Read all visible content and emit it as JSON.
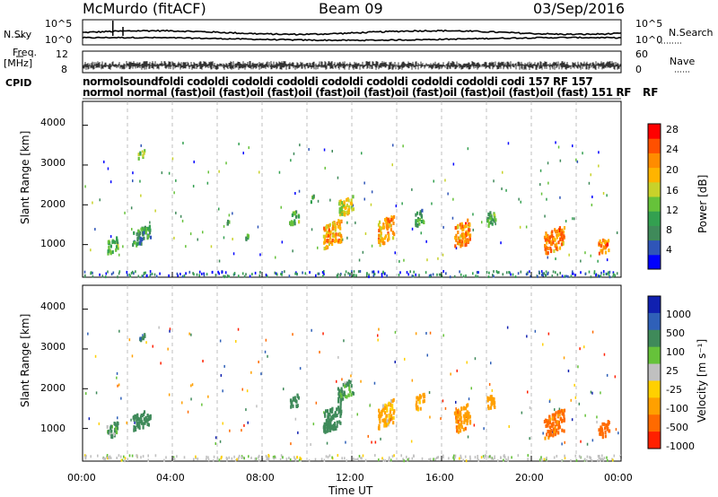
{
  "header": {
    "station": "McMurdo (fitACF)",
    "beam": "Beam 09",
    "date": "03/Sep/2016"
  },
  "noise_panel": {
    "left_label": "N.Sky",
    "right_label": "N.Search",
    "left_ticks": [
      "10^5",
      "10^0"
    ],
    "right_ticks": [
      "10^5",
      "10^0"
    ]
  },
  "freq_panel": {
    "left_label": "Freq.",
    "left_unit": "[MHz]",
    "right_label": "Nave",
    "left_ticks": [
      "12",
      "8"
    ],
    "right_ticks": [
      "60",
      "0"
    ]
  },
  "cpid_panel": {
    "label": "CPID",
    "row1": "normolsoundfoldi codoldi codoldi codoldi codoldi codoldi codoldi codoldi codi 157 RF 157",
    "row2": "normol normal (fast)oil (fast)oil (fast)oil (fast)oil (fast)oil (fast)oil (fast)oil (fast)oil (fast) 151 RF",
    "right_label": "RF"
  },
  "power_panel": {
    "ylabel": "Slant Range [km]",
    "yticks": [
      "4000",
      "3000",
      "2000",
      "1000"
    ],
    "colorbar_label": "Power [dB]",
    "colorbar_ticks": [
      "28",
      "24",
      "20",
      "16",
      "12",
      "8",
      "4"
    ],
    "colors": [
      "#0000ff",
      "#2f55b8",
      "#3f8a5a",
      "#33a050",
      "#66c23a",
      "#c8d22a",
      "#ffb400",
      "#ff8c00",
      "#ff5000",
      "#ff0000"
    ]
  },
  "velocity_panel": {
    "ylabel": "Slant Range [km]",
    "yticks": [
      "4000",
      "3000",
      "2000",
      "1000"
    ],
    "colorbar_label": "Velocity [m s⁻¹]",
    "colorbar_ticks": [
      "1000",
      "500",
      "100",
      "25",
      "-25",
      "-100",
      "-500",
      "-1000"
    ],
    "colors": [
      "#1020b0",
      "#2f60b8",
      "#3f8a5a",
      "#66c23a",
      "#c0c0c0",
      "#ffd000",
      "#ffa000",
      "#ff6a00",
      "#ff2000"
    ]
  },
  "x_axis": {
    "label": "Time UT",
    "ticks": [
      "00:00",
      "04:00",
      "08:00",
      "12:00",
      "16:00",
      "20:00",
      "00:00"
    ]
  },
  "chart_data": {
    "type": "heatmap",
    "title": "McMurdo (fitACF) Beam 09 03/Sep/2016",
    "xlabel": "Time UT",
    "ylabel": "Slant Range [km]",
    "xlim_hours": [
      0,
      24
    ],
    "ylim_km": [
      180,
      4600
    ],
    "panels": [
      {
        "name": "Power [dB]",
        "scale": [
          0,
          32
        ],
        "patches": [
          {
            "t": 1.3,
            "r": 1000,
            "dt": 0.5,
            "dr": 350,
            "v": 14
          },
          {
            "t": 2.6,
            "r": 1250,
            "dt": 0.8,
            "dr": 400,
            "v": 10
          },
          {
            "t": 2.6,
            "r": 3300,
            "dt": 0.3,
            "dr": 150,
            "v": 16
          },
          {
            "t": 6.5,
            "r": 1600,
            "dt": 0.2,
            "dr": 150,
            "v": 10
          },
          {
            "t": 7.3,
            "r": 1200,
            "dt": 0.2,
            "dr": 150,
            "v": 10
          },
          {
            "t": 9.4,
            "r": 1700,
            "dt": 0.4,
            "dr": 300,
            "v": 12
          },
          {
            "t": 10.2,
            "r": 2200,
            "dt": 0.2,
            "dr": 150,
            "v": 12
          },
          {
            "t": 11.1,
            "r": 1300,
            "dt": 0.8,
            "dr": 600,
            "v": 22
          },
          {
            "t": 11.7,
            "r": 2000,
            "dt": 0.7,
            "dr": 400,
            "v": 18
          },
          {
            "t": 13.5,
            "r": 1400,
            "dt": 0.7,
            "dr": 600,
            "v": 22
          },
          {
            "t": 15.0,
            "r": 1700,
            "dt": 0.4,
            "dr": 350,
            "v": 10
          },
          {
            "t": 16.9,
            "r": 1300,
            "dt": 0.7,
            "dr": 600,
            "v": 24
          },
          {
            "t": 18.2,
            "r": 1700,
            "dt": 0.4,
            "dr": 350,
            "v": 12
          },
          {
            "t": 21.0,
            "r": 1150,
            "dt": 0.9,
            "dr": 550,
            "v": 24
          },
          {
            "t": 23.2,
            "r": 1000,
            "dt": 0.5,
            "dr": 350,
            "v": 24
          }
        ]
      },
      {
        "name": "Velocity [m s-1]",
        "scale": [
          -1000,
          1000
        ],
        "patches": [
          {
            "t": 1.3,
            "r": 1000,
            "dt": 0.5,
            "dr": 350,
            "v": 150
          },
          {
            "t": 2.6,
            "r": 1250,
            "dt": 0.8,
            "dr": 400,
            "v": 300
          },
          {
            "t": 2.6,
            "r": 3300,
            "dt": 0.3,
            "dr": 150,
            "v": 400
          },
          {
            "t": 9.4,
            "r": 1700,
            "dt": 0.4,
            "dr": 300,
            "v": 250
          },
          {
            "t": 11.1,
            "r": 1300,
            "dt": 0.8,
            "dr": 600,
            "v": 300
          },
          {
            "t": 11.7,
            "r": 2000,
            "dt": 0.7,
            "dr": 400,
            "v": 150
          },
          {
            "t": 13.5,
            "r": 1400,
            "dt": 0.7,
            "dr": 600,
            "v": -150
          },
          {
            "t": 15.0,
            "r": 1700,
            "dt": 0.4,
            "dr": 350,
            "v": -200
          },
          {
            "t": 16.9,
            "r": 1300,
            "dt": 0.7,
            "dr": 600,
            "v": -400
          },
          {
            "t": 18.2,
            "r": 1700,
            "dt": 0.4,
            "dr": 350,
            "v": -300
          },
          {
            "t": 21.0,
            "r": 1150,
            "dt": 0.9,
            "dr": 550,
            "v": -600
          },
          {
            "t": 23.2,
            "r": 1000,
            "dt": 0.5,
            "dr": 350,
            "v": -700
          }
        ]
      }
    ],
    "grid": true
  }
}
